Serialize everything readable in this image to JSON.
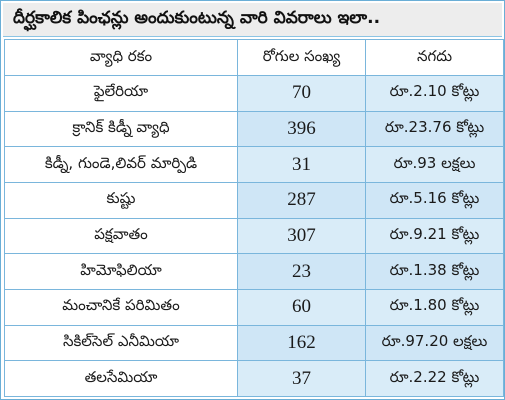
{
  "title": "దీర్ఘకాలిక పింఛన్లు అందుకుంటున్న వారి వివరాలు ఇలా..",
  "headers": {
    "disease": "వ్యాధి రకం",
    "patients": "రోగుల సంఖ్య",
    "amount": "నగదు"
  },
  "rows": [
    {
      "disease": "ఫైలేరియా",
      "patients": "70",
      "amount": "రూ.2.10 కోట్లు"
    },
    {
      "disease": "క్రానిక్ కిడ్నీ వ్యాధి",
      "patients": "396",
      "amount": "రూ.23.76 కోట్లు"
    },
    {
      "disease": "కిడ్నీ, గుండె,లివర్ మార్పిడి",
      "patients": "31",
      "amount": "రూ.93 లక్షలు"
    },
    {
      "disease": "కుష్టు",
      "patients": "287",
      "amount": "రూ.5.16 కోట్లు"
    },
    {
      "disease": "పక్షవాతం",
      "patients": "307",
      "amount": "రూ.9.21 కోట్లు"
    },
    {
      "disease": "హిమోఫిలియా",
      "patients": "23",
      "amount": "రూ.1.38 కోట్లు"
    },
    {
      "disease": "మంచానికే పరిమితం",
      "patients": "60",
      "amount": "రూ.1.80 కోట్లు"
    },
    {
      "disease": "సికిల్‌సెల్ ఎనీమియా",
      "patients": "162",
      "amount": "రూ.97.20 లక్షలు"
    },
    {
      "disease": "తలసేమియా",
      "patients": "37",
      "amount": "రూ.2.22 కోట్లు"
    }
  ]
}
